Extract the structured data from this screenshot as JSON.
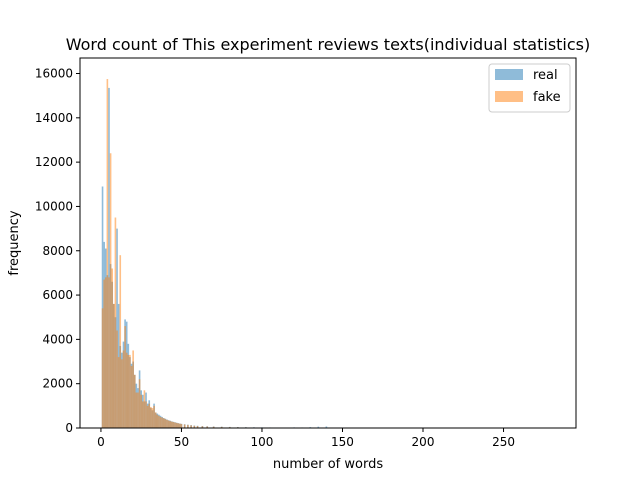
{
  "chart_data": {
    "type": "histogram",
    "title": "Word count of This experiment reviews texts(individual statistics)",
    "xlabel": "number of words",
    "ylabel": "frequency",
    "xlim": [
      -13,
      295
    ],
    "ylim": [
      0,
      16700
    ],
    "x_ticks": [
      0,
      50,
      100,
      150,
      200,
      250
    ],
    "y_ticks": [
      0,
      2000,
      4000,
      6000,
      8000,
      10000,
      12000,
      14000,
      16000
    ],
    "grid": false,
    "legend": {
      "position": "top-right",
      "entries": [
        "real",
        "fake"
      ]
    },
    "bin_width": 1,
    "series": [
      {
        "name": "real",
        "color": "#1f77b4",
        "opacity": 0.5,
        "bins": [
          [
            1,
            10900
          ],
          [
            2,
            8400
          ],
          [
            3,
            8100
          ],
          [
            4,
            6900
          ],
          [
            5,
            15350
          ],
          [
            6,
            7400
          ],
          [
            7,
            6600
          ],
          [
            8,
            5600
          ],
          [
            9,
            5000
          ],
          [
            10,
            9000
          ],
          [
            11,
            5600
          ],
          [
            12,
            3700
          ],
          [
            13,
            3400
          ],
          [
            14,
            3900
          ],
          [
            15,
            4900
          ],
          [
            16,
            4800
          ],
          [
            17,
            3800
          ],
          [
            18,
            3200
          ],
          [
            19,
            2900
          ],
          [
            20,
            3000
          ],
          [
            21,
            2400
          ],
          [
            22,
            2000
          ],
          [
            23,
            1800
          ],
          [
            24,
            2600
          ],
          [
            25,
            1700
          ],
          [
            26,
            1500
          ],
          [
            27,
            1200
          ],
          [
            28,
            1600
          ],
          [
            29,
            1100
          ],
          [
            30,
            1250
          ],
          [
            31,
            900
          ],
          [
            32,
            800
          ],
          [
            33,
            1100
          ],
          [
            34,
            700
          ],
          [
            35,
            650
          ],
          [
            36,
            600
          ],
          [
            37,
            550
          ],
          [
            38,
            500
          ],
          [
            39,
            450
          ],
          [
            40,
            420
          ],
          [
            41,
            380
          ],
          [
            42,
            350
          ],
          [
            43,
            330
          ],
          [
            44,
            300
          ],
          [
            45,
            280
          ],
          [
            46,
            260
          ],
          [
            47,
            240
          ],
          [
            48,
            220
          ],
          [
            49,
            200
          ],
          [
            50,
            190
          ],
          [
            52,
            170
          ],
          [
            54,
            150
          ],
          [
            56,
            130
          ],
          [
            58,
            110
          ],
          [
            60,
            100
          ],
          [
            63,
            90
          ],
          [
            66,
            80
          ],
          [
            70,
            70
          ],
          [
            75,
            60
          ],
          [
            80,
            50
          ],
          [
            85,
            45
          ],
          [
            90,
            40
          ],
          [
            95,
            35
          ],
          [
            100,
            30
          ],
          [
            105,
            25
          ],
          [
            110,
            22
          ],
          [
            115,
            20
          ],
          [
            120,
            30
          ],
          [
            125,
            25
          ],
          [
            130,
            40
          ],
          [
            135,
            60
          ],
          [
            140,
            70
          ],
          [
            145,
            20
          ],
          [
            150,
            10
          ],
          [
            160,
            6
          ],
          [
            170,
            5
          ],
          [
            180,
            4
          ],
          [
            200,
            3
          ],
          [
            220,
            2
          ],
          [
            250,
            1
          ]
        ]
      },
      {
        "name": "fake",
        "color": "#ff7f0e",
        "opacity": 0.5,
        "bins": [
          [
            1,
            5400
          ],
          [
            2,
            6700
          ],
          [
            3,
            6800
          ],
          [
            4,
            15750
          ],
          [
            5,
            6800
          ],
          [
            6,
            12400
          ],
          [
            7,
            7200
          ],
          [
            8,
            5600
          ],
          [
            9,
            9500
          ],
          [
            10,
            4400
          ],
          [
            11,
            3200
          ],
          [
            12,
            7800
          ],
          [
            13,
            3100
          ],
          [
            14,
            3500
          ],
          [
            15,
            4600
          ],
          [
            16,
            3400
          ],
          [
            17,
            3300
          ],
          [
            18,
            3300
          ],
          [
            19,
            2800
          ],
          [
            20,
            3500
          ],
          [
            21,
            2400
          ],
          [
            22,
            1600
          ],
          [
            23,
            1600
          ],
          [
            24,
            2200
          ],
          [
            25,
            1500
          ],
          [
            26,
            1200
          ],
          [
            27,
            1700
          ],
          [
            28,
            1200
          ],
          [
            29,
            1000
          ],
          [
            30,
            1100
          ],
          [
            31,
            950
          ],
          [
            32,
            900
          ],
          [
            33,
            1000
          ],
          [
            34,
            700
          ],
          [
            35,
            600
          ],
          [
            36,
            550
          ],
          [
            37,
            500
          ],
          [
            38,
            470
          ],
          [
            39,
            440
          ],
          [
            40,
            400
          ],
          [
            41,
            370
          ],
          [
            42,
            340
          ],
          [
            43,
            310
          ],
          [
            44,
            290
          ],
          [
            45,
            270
          ],
          [
            46,
            250
          ],
          [
            47,
            230
          ],
          [
            48,
            210
          ],
          [
            49,
            200
          ],
          [
            50,
            180
          ],
          [
            52,
            160
          ],
          [
            54,
            140
          ],
          [
            56,
            120
          ],
          [
            58,
            100
          ],
          [
            60,
            90
          ],
          [
            63,
            80
          ],
          [
            66,
            70
          ],
          [
            70,
            60
          ],
          [
            75,
            50
          ],
          [
            80,
            40
          ],
          [
            85,
            35
          ],
          [
            90,
            30
          ],
          [
            95,
            25
          ],
          [
            100,
            20
          ],
          [
            105,
            18
          ],
          [
            110,
            15
          ],
          [
            115,
            12
          ],
          [
            120,
            10
          ],
          [
            125,
            8
          ],
          [
            130,
            6
          ],
          [
            140,
            5
          ],
          [
            150,
            4
          ],
          [
            170,
            3
          ],
          [
            190,
            3
          ],
          [
            220,
            2
          ],
          [
            250,
            2
          ],
          [
            280,
            1
          ]
        ]
      }
    ]
  }
}
